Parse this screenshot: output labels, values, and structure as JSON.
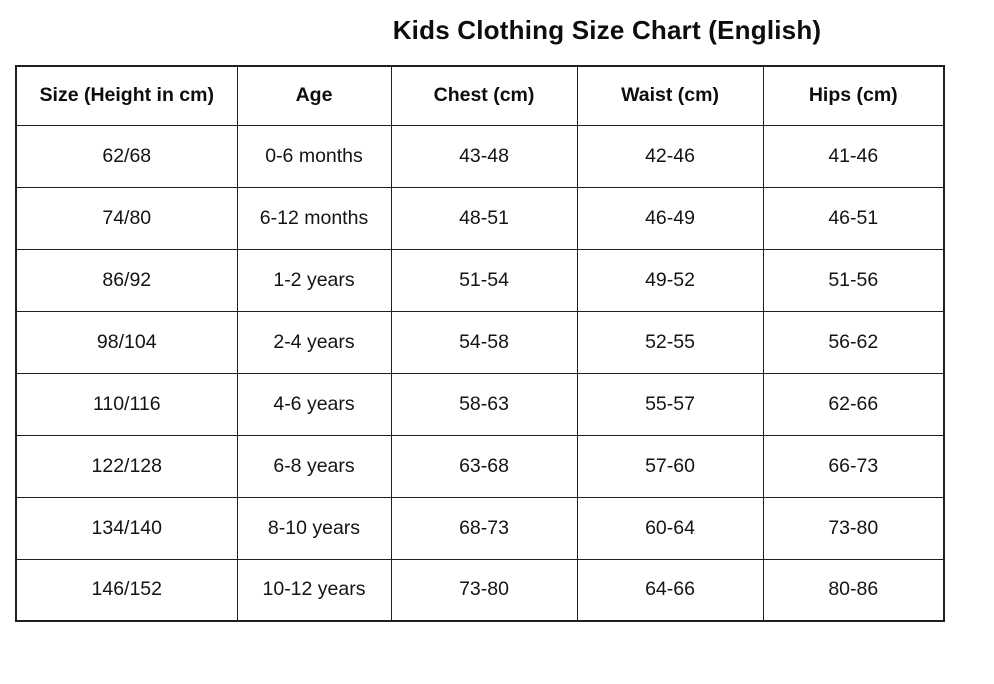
{
  "page": {
    "title": "Kids Clothing Size Chart (English)"
  },
  "table": {
    "headers": [
      "Size (Height in cm)",
      "Age",
      "Chest (cm)",
      "Waist (cm)",
      "Hips (cm)"
    ],
    "rows": [
      [
        "62/68",
        "0-6 months",
        "43-48",
        "42-46",
        "41-46"
      ],
      [
        "74/80",
        "6-12 months",
        "48-51",
        "46-49",
        "46-51"
      ],
      [
        "86/92",
        "1-2 years",
        "51-54",
        "49-52",
        "51-56"
      ],
      [
        "98/104",
        "2-4 years",
        "54-58",
        "52-55",
        "56-62"
      ],
      [
        "110/116",
        "4-6 years",
        "58-63",
        "55-57",
        "62-66"
      ],
      [
        "122/128",
        "6-8 years",
        "63-68",
        "57-60",
        "66-73"
      ],
      [
        "134/140",
        "8-10 years",
        "68-73",
        "60-64",
        "73-80"
      ],
      [
        "146/152",
        "10-12 years",
        "73-80",
        "64-66",
        "80-86"
      ]
    ]
  }
}
